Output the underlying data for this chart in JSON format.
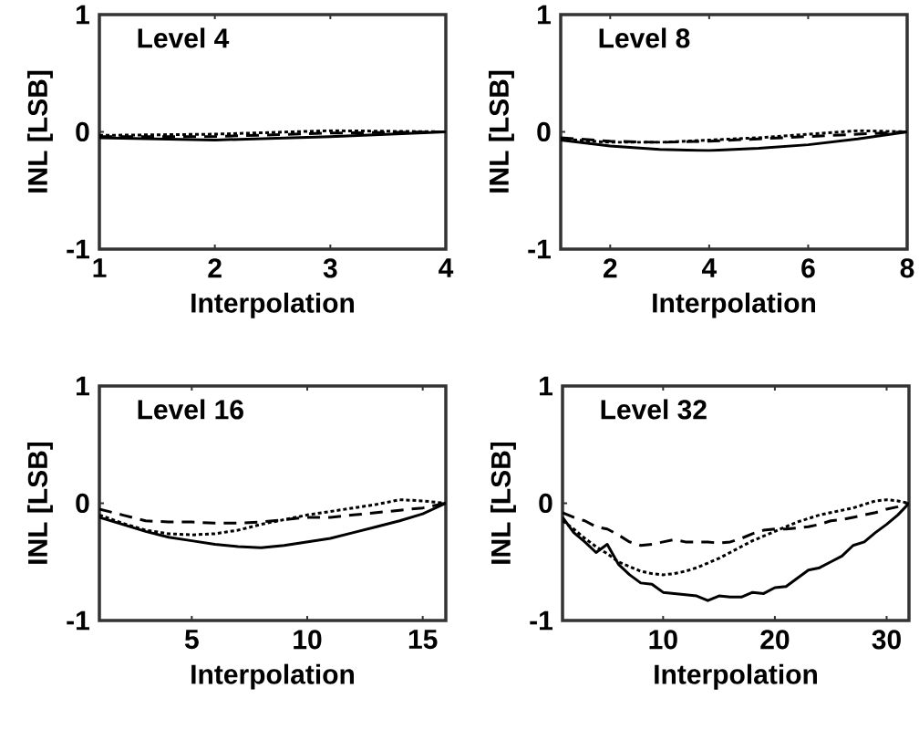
{
  "chart_data": [
    {
      "type": "line",
      "title": "Level 4",
      "xlabel": "Interpolation",
      "ylabel": "INL [LSB]",
      "x": [
        1,
        2,
        3,
        4
      ],
      "xlim": [
        1,
        4
      ],
      "ylim": [
        -1,
        1
      ],
      "xticks": [
        1,
        2,
        3,
        4
      ],
      "yticks": [
        -1,
        0,
        1
      ],
      "series": [
        {
          "color": "#000000",
          "line_style": "solid",
          "values": [
            -0.05,
            -0.07,
            -0.04,
            0
          ]
        },
        {
          "color": "#000000",
          "line_style": "dashed",
          "values": [
            -0.04,
            -0.04,
            -0.01,
            0
          ]
        },
        {
          "color": "#000000",
          "line_style": "dotted",
          "values": [
            -0.03,
            -0.02,
            0.01,
            0
          ]
        }
      ]
    },
    {
      "type": "line",
      "title": "Level 8",
      "xlabel": "Interpolation",
      "ylabel": "INL [LSB]",
      "x": [
        1,
        2,
        3,
        4,
        5,
        6,
        7,
        8
      ],
      "xlim": [
        1,
        8
      ],
      "ylim": [
        -1,
        1
      ],
      "xticks": [
        2,
        4,
        6,
        8
      ],
      "yticks": [
        -1,
        0,
        1
      ],
      "series": [
        {
          "color": "#000000",
          "line_style": "solid",
          "values": [
            -0.07,
            -0.12,
            -0.15,
            -0.16,
            -0.14,
            -0.11,
            -0.06,
            0
          ]
        },
        {
          "color": "#000000",
          "line_style": "dashed",
          "values": [
            -0.05,
            -0.08,
            -0.09,
            -0.08,
            -0.06,
            -0.04,
            -0.02,
            0
          ]
        },
        {
          "color": "#000000",
          "line_style": "dotted",
          "values": [
            -0.06,
            -0.09,
            -0.09,
            -0.07,
            -0.05,
            -0.02,
            0.01,
            0
          ]
        }
      ]
    },
    {
      "type": "line",
      "title": "Level 16",
      "xlabel": "Interpolation",
      "ylabel": "INL [LSB]",
      "x": [
        1,
        2,
        3,
        4,
        5,
        6,
        7,
        8,
        9,
        10,
        11,
        12,
        13,
        14,
        15,
        16
      ],
      "xlim": [
        1,
        16
      ],
      "ylim": [
        -1,
        1
      ],
      "xticks": [
        5,
        10,
        15
      ],
      "yticks": [
        -1,
        0,
        1
      ],
      "series": [
        {
          "color": "#000000",
          "line_style": "solid",
          "values": [
            -0.12,
            -0.18,
            -0.24,
            -0.29,
            -0.32,
            -0.35,
            -0.37,
            -0.38,
            -0.36,
            -0.33,
            -0.3,
            -0.25,
            -0.2,
            -0.15,
            -0.09,
            0
          ]
        },
        {
          "color": "#000000",
          "line_style": "dashed",
          "values": [
            -0.05,
            -0.1,
            -0.15,
            -0.16,
            -0.16,
            -0.17,
            -0.17,
            -0.16,
            -0.14,
            -0.12,
            -0.12,
            -0.1,
            -0.08,
            -0.06,
            -0.04,
            0
          ]
        },
        {
          "color": "#000000",
          "line_style": "dotted",
          "values": [
            -0.1,
            -0.17,
            -0.23,
            -0.26,
            -0.27,
            -0.26,
            -0.23,
            -0.18,
            -0.14,
            -0.1,
            -0.07,
            -0.04,
            -0.01,
            0.03,
            0.02,
            0
          ]
        }
      ]
    },
    {
      "type": "line",
      "title": "Level 32",
      "xlabel": "Interpolation",
      "ylabel": "INL [LSB]",
      "x": [
        1,
        2,
        3,
        4,
        5,
        6,
        7,
        8,
        9,
        10,
        11,
        12,
        13,
        14,
        15,
        16,
        17,
        18,
        19,
        20,
        21,
        22,
        23,
        24,
        25,
        26,
        27,
        28,
        29,
        30,
        31,
        32
      ],
      "xlim": [
        1,
        32
      ],
      "ylim": [
        -1,
        1
      ],
      "xticks": [
        10,
        20,
        30
      ],
      "yticks": [
        -1,
        0,
        1
      ],
      "series": [
        {
          "color": "#000000",
          "line_style": "solid",
          "values": [
            -0.12,
            -0.25,
            -0.33,
            -0.42,
            -0.35,
            -0.52,
            -0.61,
            -0.68,
            -0.69,
            -0.76,
            -0.77,
            -0.78,
            -0.79,
            -0.83,
            -0.79,
            -0.8,
            -0.8,
            -0.76,
            -0.77,
            -0.72,
            -0.71,
            -0.64,
            -0.57,
            -0.55,
            -0.5,
            -0.45,
            -0.36,
            -0.33,
            -0.25,
            -0.18,
            -0.1,
            0
          ]
        },
        {
          "color": "#000000",
          "line_style": "dashed",
          "values": [
            -0.08,
            -0.12,
            -0.15,
            -0.2,
            -0.22,
            -0.27,
            -0.33,
            -0.36,
            -0.35,
            -0.33,
            -0.31,
            -0.33,
            -0.33,
            -0.33,
            -0.34,
            -0.33,
            -0.3,
            -0.26,
            -0.23,
            -0.22,
            -0.22,
            -0.21,
            -0.2,
            -0.18,
            -0.15,
            -0.14,
            -0.12,
            -0.1,
            -0.08,
            -0.05,
            -0.03,
            0
          ]
        },
        {
          "color": "#000000",
          "line_style": "dotted",
          "values": [
            -0.15,
            -0.22,
            -0.3,
            -0.37,
            -0.43,
            -0.5,
            -0.54,
            -0.58,
            -0.6,
            -0.61,
            -0.6,
            -0.58,
            -0.55,
            -0.51,
            -0.47,
            -0.42,
            -0.37,
            -0.32,
            -0.28,
            -0.24,
            -0.2,
            -0.16,
            -0.13,
            -0.1,
            -0.08,
            -0.06,
            -0.04,
            -0.01,
            0.02,
            0.03,
            0.02,
            0
          ]
        }
      ]
    }
  ]
}
